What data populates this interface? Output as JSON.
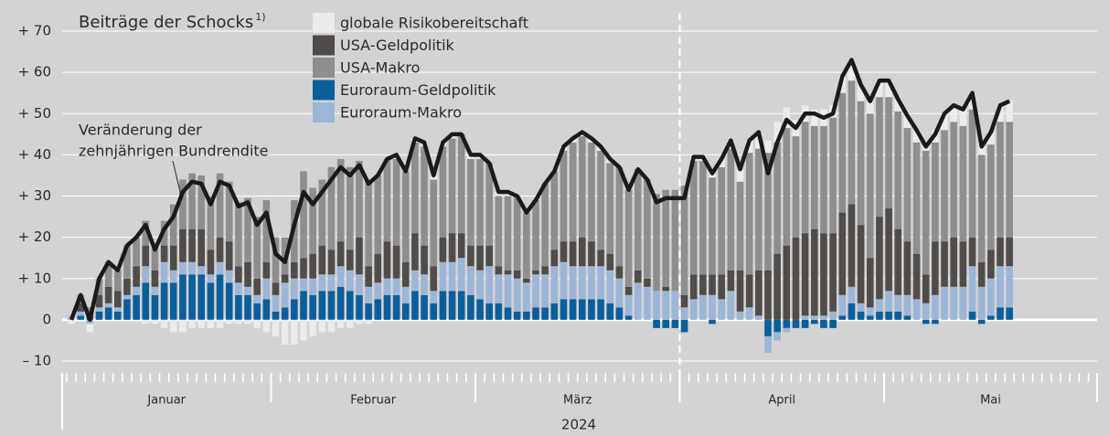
{
  "chart_data": {
    "type": "stacked_bar_line",
    "title": "Beiträge der Schocks",
    "title_note": "1)",
    "annotation": [
      "Veränderung der",
      "zehnjährigen Bundrendite"
    ],
    "x_title": "2024",
    "categories": [
      null,
      null,
      null,
      null,
      null,
      null,
      null,
      null,
      null,
      null,
      null,
      null,
      null,
      null,
      null,
      null,
      null,
      null,
      null,
      null,
      null,
      null,
      null,
      null,
      null,
      null,
      null,
      null,
      null,
      null,
      null,
      null,
      null,
      null,
      null,
      null,
      null,
      null,
      null,
      null,
      null,
      null,
      null,
      null,
      null,
      null,
      null,
      null,
      null,
      null,
      null,
      null,
      null,
      null,
      null,
      null,
      null,
      null,
      null,
      null,
      null,
      null,
      null,
      null,
      null,
      null,
      null,
      null,
      null,
      null,
      null,
      null,
      null,
      null,
      null,
      null,
      null,
      null,
      null,
      null,
      null,
      null,
      null,
      null,
      null,
      null,
      null,
      null,
      null,
      null,
      null,
      null,
      null,
      null,
      null,
      null,
      null,
      null,
      null,
      null,
      null,
      null
    ],
    "months": [
      {
        "label": "Januar",
        "start": 0
      },
      {
        "label": "Februar",
        "start": 22
      },
      {
        "label": "März",
        "start": 44
      },
      {
        "label": "April",
        "start": 66
      },
      {
        "label": "Mai",
        "start": 88
      }
    ],
    "divider_at": 66,
    "ylim": [
      -10,
      70
    ],
    "yticks": [
      {
        "value": -10,
        "label": "– 10"
      },
      0,
      {
        "value": 10,
        "label": "+ 10"
      },
      {
        "value": 20,
        "label": "+ 20"
      },
      {
        "value": 30,
        "label": "+ 30"
      },
      {
        "value": 40,
        "label": "+ 40"
      },
      {
        "value": 50,
        "label": "+ 50"
      },
      {
        "value": 60,
        "label": "+ 60"
      },
      {
        "value": 70,
        "label": "+ 70"
      }
    ],
    "grid": true,
    "stack_order": [
      3,
      4,
      1,
      2,
      0
    ],
    "series": [
      {
        "name": "globale Risikobereitschaft",
        "color": "#ebebeb",
        "values": [
          -1,
          0,
          -2,
          0,
          0,
          0,
          0,
          0,
          -1,
          -1,
          -2,
          -3,
          -3,
          -2,
          -2,
          -2,
          -2,
          -1,
          -1,
          -1,
          -2,
          -3,
          -4,
          -6,
          -6,
          -5,
          -4,
          -3,
          -3,
          -2,
          -2,
          -1,
          -1,
          0,
          0,
          1,
          0,
          1,
          1,
          1,
          1,
          1,
          0,
          1,
          1,
          0,
          1,
          1,
          0,
          0,
          0,
          0,
          0,
          1,
          1,
          1,
          1,
          1,
          1,
          0,
          0,
          0,
          0,
          0,
          0,
          0,
          0,
          1,
          1,
          2,
          2,
          2,
          3,
          3,
          4,
          3,
          5,
          5,
          4,
          4,
          4,
          4,
          3,
          4,
          5,
          4,
          3,
          4,
          4,
          3,
          3,
          3,
          2,
          3,
          4,
          4,
          4,
          4,
          3,
          3,
          4,
          5
        ]
      },
      {
        "name": "USA-Geldpolitik",
        "color": "#4f4c49",
        "values": [
          0,
          2,
          1,
          3,
          4,
          4,
          4,
          5,
          5,
          4,
          4,
          6,
          8,
          8,
          9,
          6,
          6,
          7,
          4,
          6,
          4,
          4,
          3,
          2,
          4,
          5,
          6,
          7,
          6,
          6,
          5,
          9,
          5,
          7,
          9,
          8,
          6,
          9,
          7,
          6,
          6,
          7,
          6,
          5,
          6,
          5,
          2,
          1,
          2,
          1,
          1,
          2,
          4,
          5,
          6,
          7,
          6,
          4,
          4,
          3,
          2,
          3,
          2,
          0,
          1,
          0,
          3,
          6,
          5,
          5,
          6,
          5,
          10,
          8,
          11,
          12,
          16,
          18,
          20,
          20,
          21,
          20,
          19,
          20,
          20,
          19,
          12,
          20,
          20,
          16,
          13,
          11,
          7,
          13,
          11,
          12,
          11,
          7,
          6,
          7,
          7,
          7
        ]
      },
      {
        "name": "USA-Makro",
        "color": "#8e8e8e",
        "values": [
          0,
          2,
          2,
          4,
          6,
          5,
          8,
          7,
          6,
          6,
          6,
          10,
          12,
          13.5,
          13,
          13,
          15.5,
          14.5,
          15.5,
          15.5,
          15,
          15,
          11,
          9,
          15,
          21,
          16,
          16,
          20,
          20,
          20,
          18.5,
          21,
          19,
          20,
          21,
          22,
          22,
          24,
          21,
          22,
          23,
          24,
          21,
          21,
          20,
          17,
          18,
          18,
          16,
          17,
          20,
          19,
          22,
          24,
          24.5,
          24,
          24,
          22,
          24,
          23.5,
          24.5,
          24,
          23.5,
          23.5,
          24.5,
          26.5,
          27.5,
          27.5,
          23.5,
          26,
          29.5,
          21.5,
          29.5,
          29.5,
          28.5,
          27,
          28.5,
          24.5,
          27,
          25,
          26,
          28,
          29,
          30,
          30,
          35,
          29,
          27,
          28.5,
          27.5,
          27,
          30,
          24,
          27,
          28,
          28,
          31,
          26,
          25.5,
          28,
          28
        ]
      },
      {
        "name": "Euroraum-Geldpolitik",
        "color": "#0b5e9c",
        "values": [
          0,
          1,
          0,
          2,
          3,
          2,
          5,
          6,
          9,
          6,
          9,
          9,
          11,
          11,
          11,
          9,
          11,
          9,
          6,
          6,
          4,
          5,
          2,
          3,
          5,
          7,
          6,
          7,
          7,
          8,
          7,
          6,
          4,
          5,
          6,
          6,
          4,
          7,
          6,
          4,
          7,
          7,
          7,
          6,
          5,
          4,
          4,
          3,
          2,
          2,
          3,
          3,
          4,
          5,
          5,
          5,
          5,
          5,
          4,
          3,
          1,
          0,
          0,
          -2,
          -2,
          -2,
          -3,
          0,
          0,
          -1,
          0,
          0,
          0,
          0,
          0,
          -4,
          -3,
          -2,
          -2,
          -2,
          -1,
          -2,
          -2,
          1,
          4,
          2,
          1,
          2,
          2,
          2,
          1,
          0,
          -1,
          -1,
          0,
          0,
          0,
          2,
          -1,
          1,
          3,
          3
        ]
      },
      {
        "name": "Euroraum-Makro",
        "color": "#9db5d7",
        "values": [
          1,
          1,
          -1,
          1,
          1,
          1,
          1,
          2,
          4,
          2,
          5,
          3,
          3,
          3,
          2,
          2,
          3,
          3,
          3,
          2,
          2,
          5,
          4,
          6,
          5,
          3,
          4,
          4,
          4,
          5,
          5,
          5,
          4,
          4,
          4,
          4,
          4,
          5,
          5,
          3,
          7,
          7,
          8,
          7,
          7,
          9,
          7,
          8,
          8,
          7,
          8,
          8,
          9,
          9,
          8,
          8,
          8,
          8,
          8,
          7,
          5,
          9,
          8,
          7,
          7,
          7,
          3,
          5,
          6,
          6,
          5,
          7,
          2,
          3,
          1,
          -4,
          -2,
          -1,
          0,
          1,
          1,
          1,
          2,
          5,
          4,
          2,
          2,
          3,
          5,
          4,
          5,
          5,
          4,
          6,
          8,
          8,
          8,
          11,
          8,
          9,
          10,
          10
        ]
      }
    ],
    "line": {
      "color": "#1a1a1a",
      "values": [
        0,
        6,
        0,
        10,
        14,
        12,
        18,
        20,
        23,
        17,
        22,
        25,
        31,
        33.5,
        33,
        28,
        33.5,
        32.5,
        27.5,
        28.5,
        23,
        26,
        16,
        14,
        23,
        31,
        28,
        31,
        34,
        37,
        35,
        37.5,
        33,
        35,
        39,
        40,
        36,
        44,
        43,
        35,
        43,
        45,
        45,
        40,
        40,
        38,
        31,
        31,
        30,
        26,
        29,
        33,
        36,
        42,
        44,
        45.5,
        44,
        42,
        39,
        37,
        31.5,
        36.5,
        34,
        28.5,
        29.5,
        29.5,
        29.5,
        39.5,
        39.5,
        35.5,
        39,
        43.5,
        36.5,
        43.5,
        45.5,
        35.5,
        43,
        48.5,
        46.5,
        50,
        50,
        49,
        50,
        59,
        63,
        57,
        53,
        58,
        58,
        53.5,
        49.5,
        46,
        42,
        45,
        50,
        52,
        51,
        55,
        42,
        45.5,
        52,
        53
      ]
    }
  }
}
